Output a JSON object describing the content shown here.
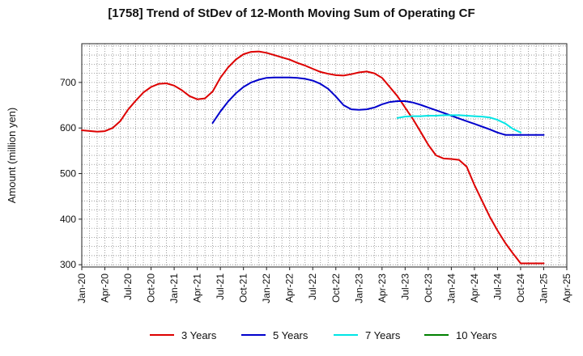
{
  "chart_data": {
    "type": "line",
    "title": "[1758]  Trend of StDev of 12-Month Moving Sum of Operating CF",
    "ylabel": "Amount (million yen)",
    "xlabel": "",
    "ylim": [
      295,
      785
    ],
    "yticks": [
      300,
      400,
      500,
      600,
      700
    ],
    "x_tick_labels": [
      "Jan-20",
      "Apr-20",
      "Jul-20",
      "Oct-20",
      "Jan-21",
      "Apr-21",
      "Jul-21",
      "Oct-21",
      "Jan-22",
      "Apr-22",
      "Jul-22",
      "Oct-22",
      "Jan-23",
      "Apr-23",
      "Jul-23",
      "Oct-23",
      "Jan-24",
      "Apr-24",
      "Jul-24",
      "Oct-24",
      "Jan-25",
      "Apr-25"
    ],
    "x_unit": "month index from Jan-20",
    "xlim": [
      0,
      63
    ],
    "grid": true,
    "legend_position": "bottom",
    "series": [
      {
        "name": "3 Years",
        "color": "#dd0000",
        "x": [
          0,
          2,
          3,
          4,
          5,
          6,
          7,
          8,
          9,
          10,
          11,
          12,
          13,
          14,
          15,
          16,
          17,
          18,
          19,
          20,
          21,
          22,
          23,
          24,
          25,
          26,
          27,
          28,
          29,
          30,
          31,
          32,
          33,
          34,
          35,
          36,
          37,
          38,
          39,
          40,
          41,
          42,
          43,
          44,
          45,
          46,
          47,
          48,
          49,
          50,
          51,
          52,
          53,
          54,
          55,
          56,
          57,
          58,
          59,
          60
        ],
        "values": [
          595,
          592,
          593,
          600,
          615,
          640,
          660,
          678,
          690,
          697,
          698,
          693,
          683,
          670,
          663,
          665,
          680,
          710,
          733,
          750,
          762,
          767,
          768,
          765,
          760,
          755,
          750,
          743,
          737,
          730,
          723,
          719,
          716,
          715,
          718,
          722,
          724,
          720,
          710,
          690,
          670,
          645,
          620,
          592,
          563,
          540,
          533,
          532,
          530,
          515,
          475,
          440,
          405,
          375,
          348,
          325,
          303,
          303,
          303,
          303
        ]
      },
      {
        "name": "5 Years",
        "color": "#0000cc",
        "x": [
          17,
          18,
          19,
          20,
          21,
          22,
          23,
          24,
          25,
          26,
          27,
          28,
          29,
          30,
          31,
          32,
          33,
          34,
          35,
          36,
          37,
          38,
          39,
          40,
          41,
          42,
          43,
          44,
          45,
          46,
          47,
          48,
          49,
          50,
          51,
          52,
          53,
          54,
          55,
          56,
          57,
          58,
          59,
          60
        ],
        "values": [
          611,
          636,
          658,
          676,
          690,
          700,
          706,
          710,
          711,
          711,
          711,
          710,
          708,
          704,
          697,
          686,
          669,
          650,
          641,
          640,
          641,
          645,
          652,
          657,
          659,
          659,
          656,
          651,
          645,
          639,
          633,
          627,
          621,
          615,
          609,
          603,
          597,
          590,
          585,
          585,
          585,
          585,
          585,
          585
        ]
      },
      {
        "name": "7 Years",
        "color": "#00e5e5",
        "x": [
          41,
          42,
          43,
          44,
          45,
          46,
          47,
          48,
          49,
          50,
          51,
          52,
          53,
          54,
          55,
          56,
          57
        ],
        "values": [
          622,
          625,
          626,
          626,
          627,
          627,
          628,
          628,
          628,
          627,
          626,
          625,
          623,
          618,
          610,
          598,
          590
        ]
      },
      {
        "name": "10 Years",
        "color": "#008000",
        "x": [],
        "values": []
      }
    ]
  }
}
